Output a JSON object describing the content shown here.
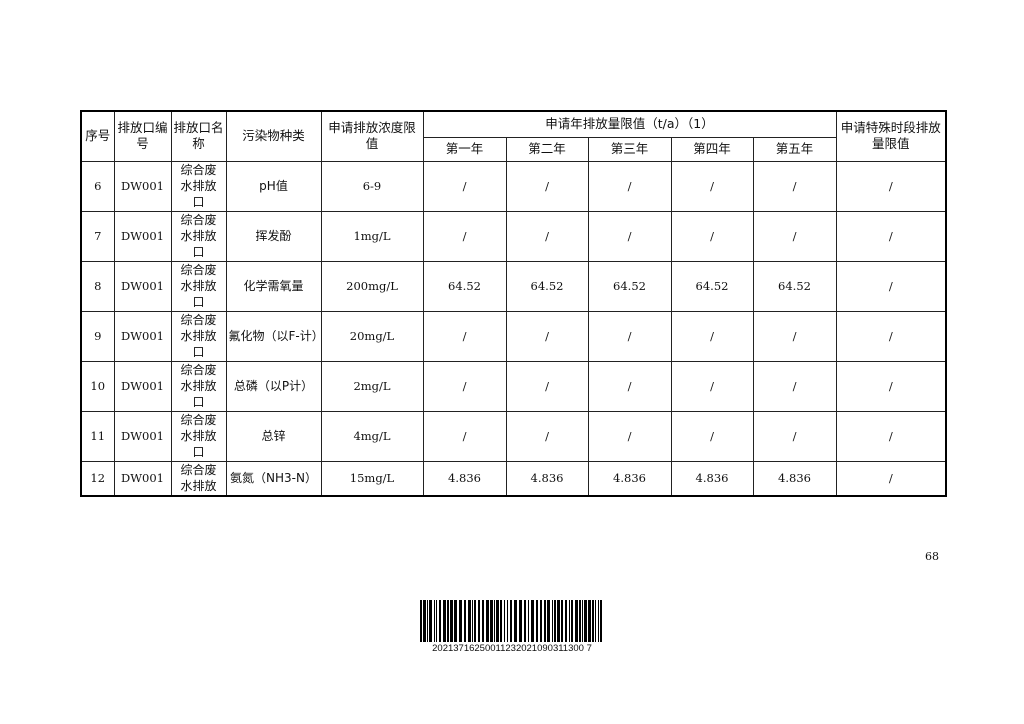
{
  "table": {
    "headers": {
      "seq": "序号",
      "outlet_id": "排放口编号",
      "outlet_name": "排放口名称",
      "pollutant": "污染物种类",
      "conc_limit": "申请排放浓度限值",
      "annual_limit": "申请年排放量限值（t/a）（1）",
      "years": [
        "第一年",
        "第二年",
        "第三年",
        "第四年",
        "第五年"
      ],
      "special": "申请特殊时段排放量限值"
    },
    "rows": [
      {
        "seq": "6",
        "id": "DW001",
        "name": "综合废水排放口",
        "pollutant": "pH值",
        "conc": "6-9",
        "years": [
          "/",
          "/",
          "/",
          "/",
          "/"
        ],
        "special": "/"
      },
      {
        "seq": "7",
        "id": "DW001",
        "name": "综合废水排放口",
        "pollutant": "挥发酚",
        "conc": "1mg/L",
        "years": [
          "/",
          "/",
          "/",
          "/",
          "/"
        ],
        "special": "/"
      },
      {
        "seq": "8",
        "id": "DW001",
        "name": "综合废水排放口",
        "pollutant": "化学需氧量",
        "conc": "200mg/L",
        "years": [
          "64.52",
          "64.52",
          "64.52",
          "64.52",
          "64.52"
        ],
        "special": "/"
      },
      {
        "seq": "9",
        "id": "DW001",
        "name": "综合废水排放口",
        "pollutant": "氟化物（以F-计）",
        "conc": "20mg/L",
        "years": [
          "/",
          "/",
          "/",
          "/",
          "/"
        ],
        "special": "/"
      },
      {
        "seq": "10",
        "id": "DW001",
        "name": "综合废水排放口",
        "pollutant": "总磷（以P计）",
        "conc": "2mg/L",
        "years": [
          "/",
          "/",
          "/",
          "/",
          "/"
        ],
        "special": "/"
      },
      {
        "seq": "11",
        "id": "DW001",
        "name": "综合废水排放口",
        "pollutant": "总锌",
        "conc": "4mg/L",
        "years": [
          "/",
          "/",
          "/",
          "/",
          "/"
        ],
        "special": "/"
      },
      {
        "seq": "12",
        "id": "DW001",
        "name": "综合废水排放",
        "pollutant": "氨氮（NH3-N）",
        "conc": "15mg/L",
        "years": [
          "4.836",
          "4.836",
          "4.836",
          "4.836",
          "4.836"
        ],
        "special": "/"
      }
    ]
  },
  "page_number": "68",
  "barcode_text": "20213716250011232021090311300 7"
}
